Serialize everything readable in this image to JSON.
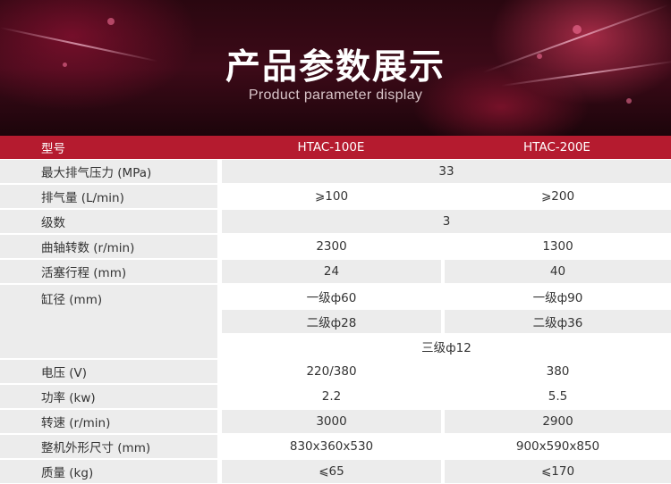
{
  "header": {
    "title": "产品参数展示",
    "subtitle": "Product parameter display"
  },
  "table": {
    "columns": [
      "型号",
      "HTAC-100E",
      "HTAC-200E"
    ],
    "rows": {
      "max_pressure": {
        "label": "最大排气压力 (MPa)",
        "value": "33"
      },
      "displacement": {
        "label": "排气量 (L/min)",
        "v1": "⩾100",
        "v2": "⩾200"
      },
      "stages": {
        "label": "级数",
        "value": "3"
      },
      "speed_crank": {
        "label": "曲轴转数 (r/min)",
        "v1": "2300",
        "v2": "1300"
      },
      "stroke": {
        "label": "活塞行程 (mm)",
        "v1": "24",
        "v2": "40"
      },
      "bore": {
        "label": "缸径 (mm)",
        "stage1_v1": "一级ф60",
        "stage1_v2": "一级ф90",
        "stage2_v1": "二级ф28",
        "stage2_v2": "二级ф36",
        "stage3": "三级ф12"
      },
      "voltage": {
        "label": "电压 (V)",
        "v1": "220/380",
        "v2": "380"
      },
      "power": {
        "label": "功率 (kw)",
        "v1": "2.2",
        "v2": "5.5"
      },
      "rpm": {
        "label": "转速 (r/min)",
        "v1": "3000",
        "v2": "2900"
      },
      "dimensions": {
        "label": "整机外形尺寸 (mm)",
        "v1": "830x360x530",
        "v2": "900x590x850"
      },
      "weight": {
        "label": "质量 (kg)",
        "v1": "⩽65",
        "v2": "⩽170"
      }
    }
  },
  "colors": {
    "header_row": "#b51b2f",
    "stripe": "#ececec",
    "banner": "#3d0a18"
  }
}
